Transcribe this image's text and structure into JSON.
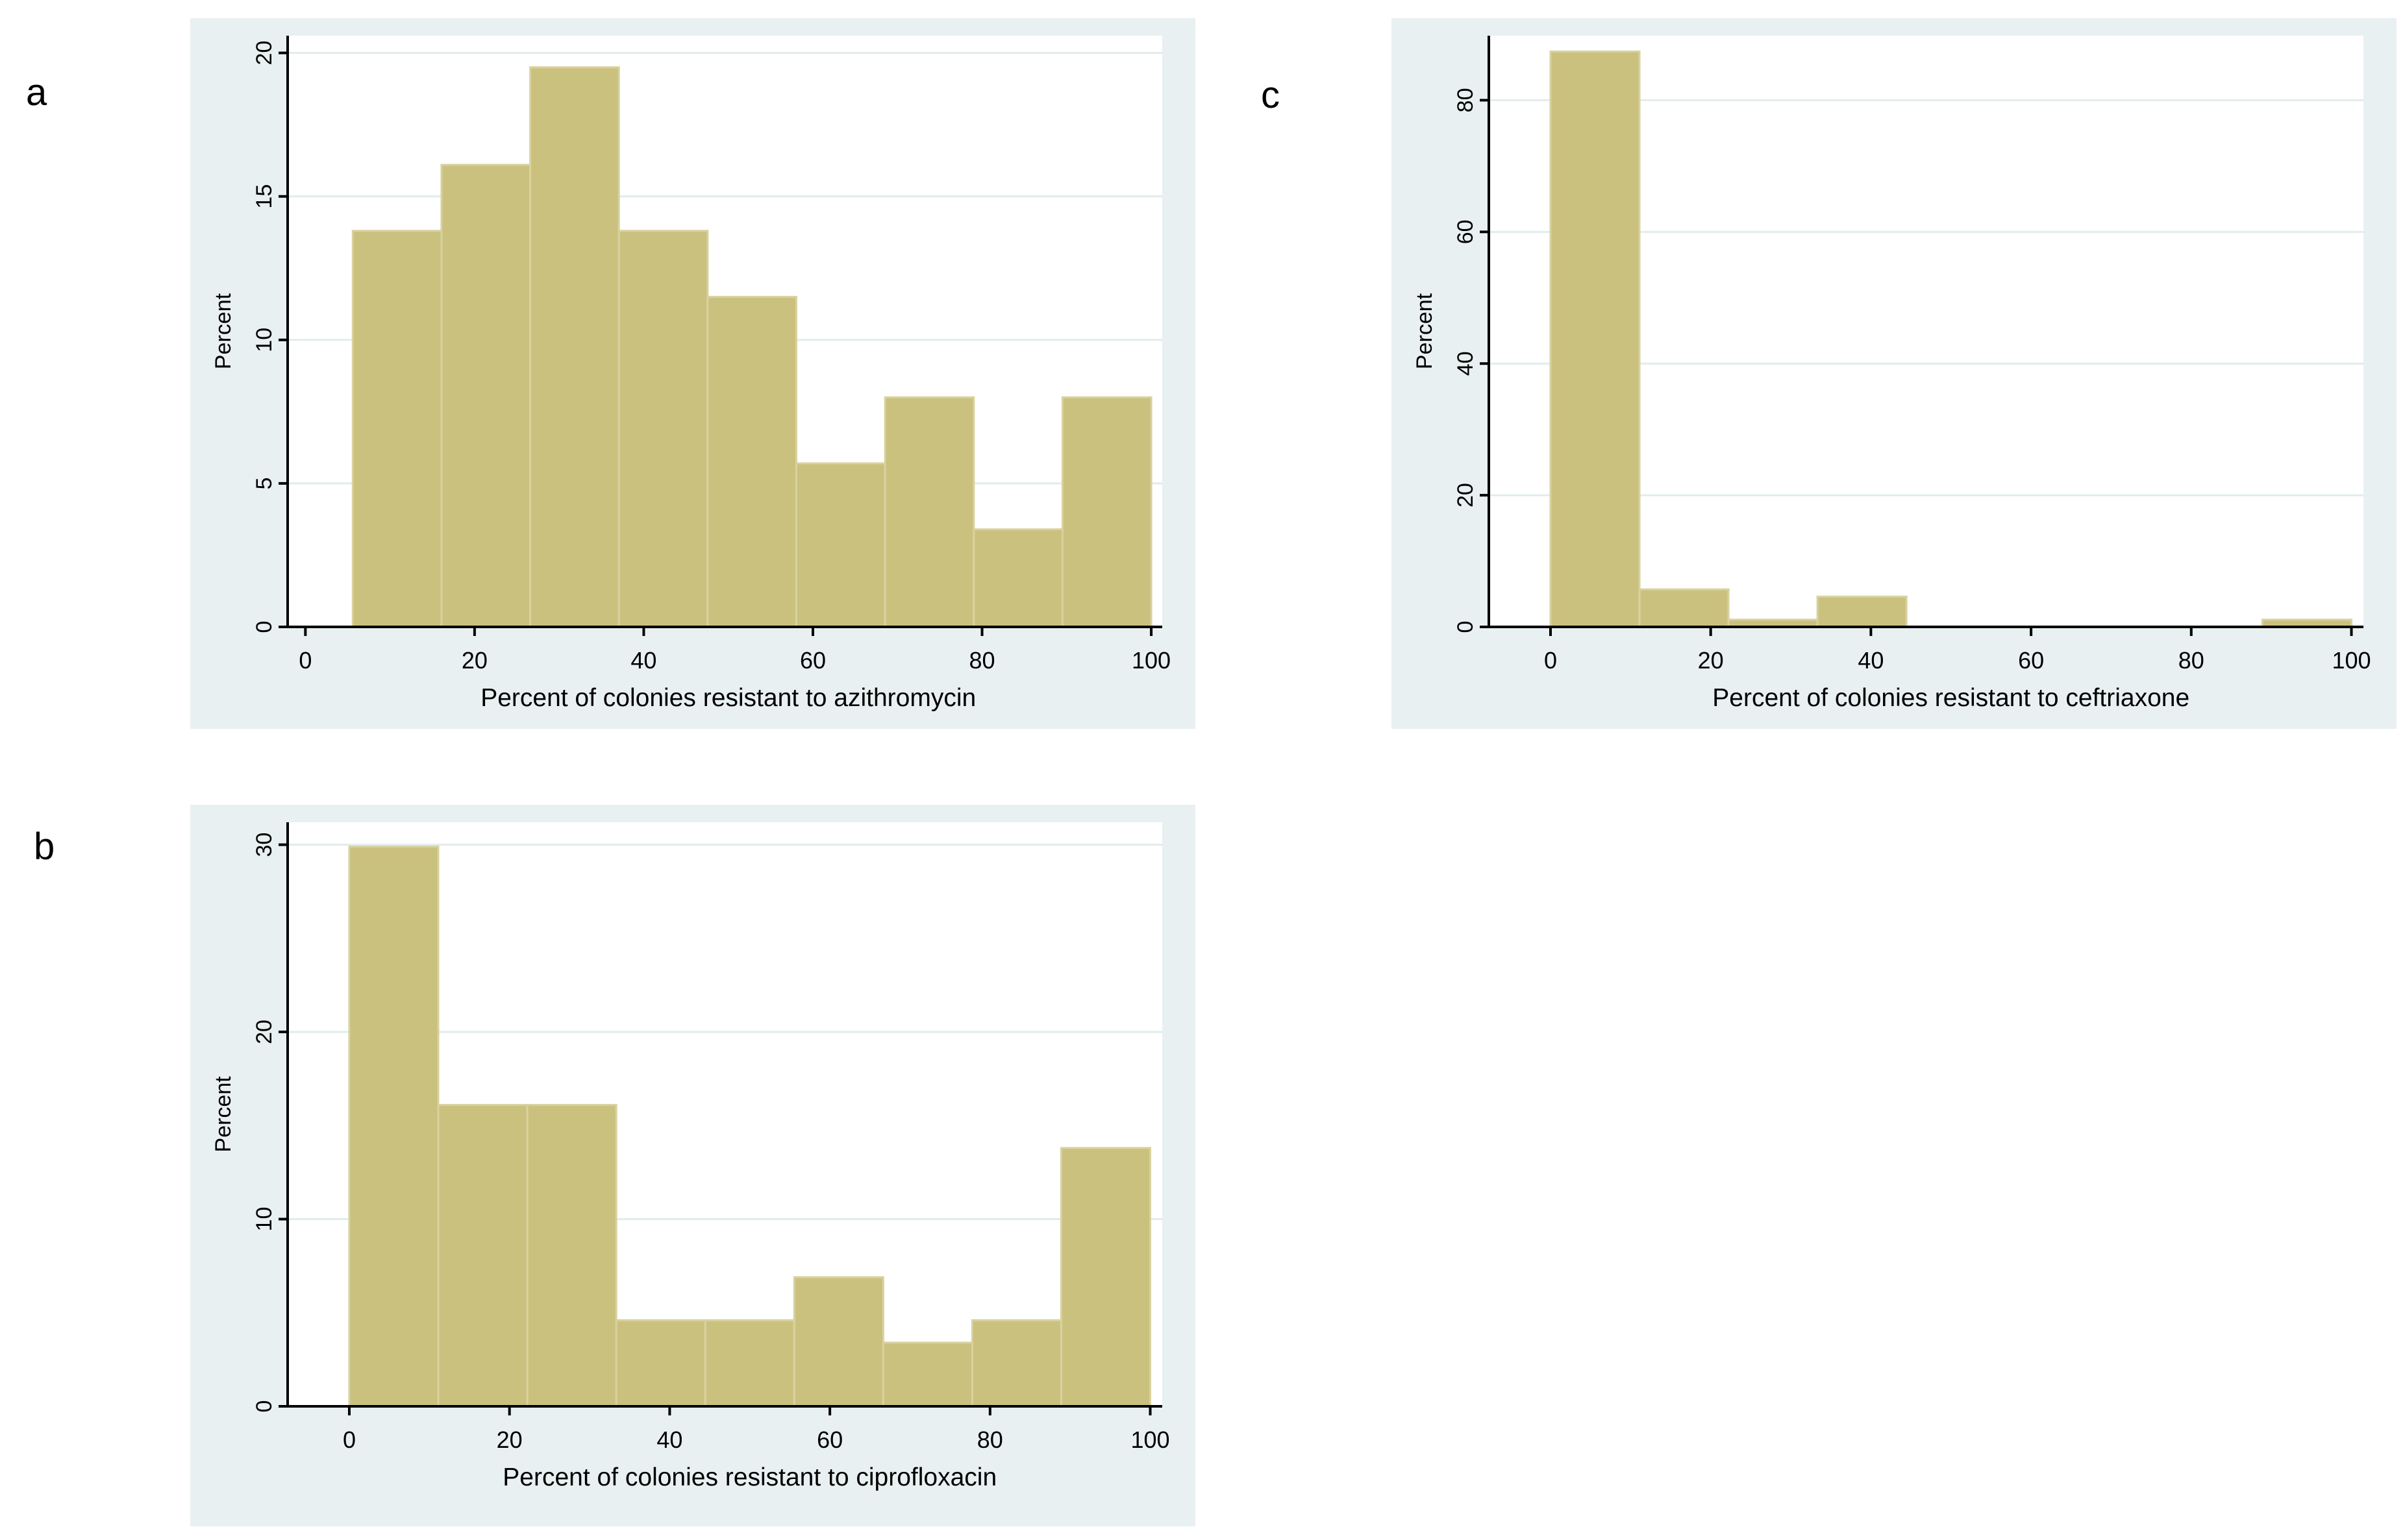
{
  "figure": {
    "background": "#ffffff",
    "panel_background": "#e9f0f1",
    "plot_background": "#ffffff",
    "gridline_color": "#e2ecee",
    "axis_color": "#000000",
    "text_color": "#000000",
    "bar_fill": "#cbc17e",
    "bar_stroke": "#d8d2a0"
  },
  "panels": [
    {
      "label": "a"
    },
    {
      "label": "b"
    },
    {
      "label": "c"
    }
  ],
  "chart_data": [
    {
      "type": "bar",
      "subtype": "histogram",
      "panel_label": "a",
      "xlabel": "Percent of colonies resistant to azithromycin",
      "ylabel": "Percent",
      "bin_start": 5.6,
      "bin_width": 10.489,
      "values": [
        13.8,
        16.1,
        19.5,
        13.8,
        11.5,
        5.7,
        8.0,
        3.4,
        8.0
      ],
      "xticks": [
        0,
        20,
        40,
        60,
        80,
        100
      ],
      "yticks": [
        0,
        5,
        10,
        15,
        20
      ],
      "xlim": [
        -2.1,
        101.3
      ],
      "ylim": [
        0,
        20.6
      ],
      "grid": "horizontal",
      "legend": "none"
    },
    {
      "type": "bar",
      "subtype": "histogram",
      "panel_label": "b",
      "xlabel": "Percent of colonies resistant to ciprofloxacin",
      "ylabel": "Percent",
      "bin_start": 0,
      "bin_width": 11.111,
      "values": [
        29.9,
        16.1,
        16.1,
        4.6,
        4.6,
        6.9,
        3.4,
        4.6,
        13.8
      ],
      "xticks": [
        0,
        20,
        40,
        60,
        80,
        100
      ],
      "yticks": [
        0,
        10,
        20,
        30
      ],
      "xlim": [
        -7.7,
        101.5
      ],
      "ylim": [
        0,
        31.2
      ],
      "grid": "horizontal",
      "legend": "none"
    },
    {
      "type": "bar",
      "subtype": "histogram",
      "panel_label": "c",
      "xlabel": "Percent of colonies resistant to ceftriaxone",
      "ylabel": "Percent",
      "bin_start": 0,
      "bin_width": 11.111,
      "values": [
        87.4,
        5.7,
        1.1,
        4.6,
        0,
        0,
        0,
        0,
        1.1
      ],
      "xticks": [
        0,
        20,
        40,
        60,
        80,
        100
      ],
      "yticks": [
        0,
        20,
        40,
        60,
        80
      ],
      "xlim": [
        -7.7,
        101.5
      ],
      "ylim": [
        0,
        89.8
      ],
      "grid": "horizontal",
      "legend": "none"
    }
  ]
}
